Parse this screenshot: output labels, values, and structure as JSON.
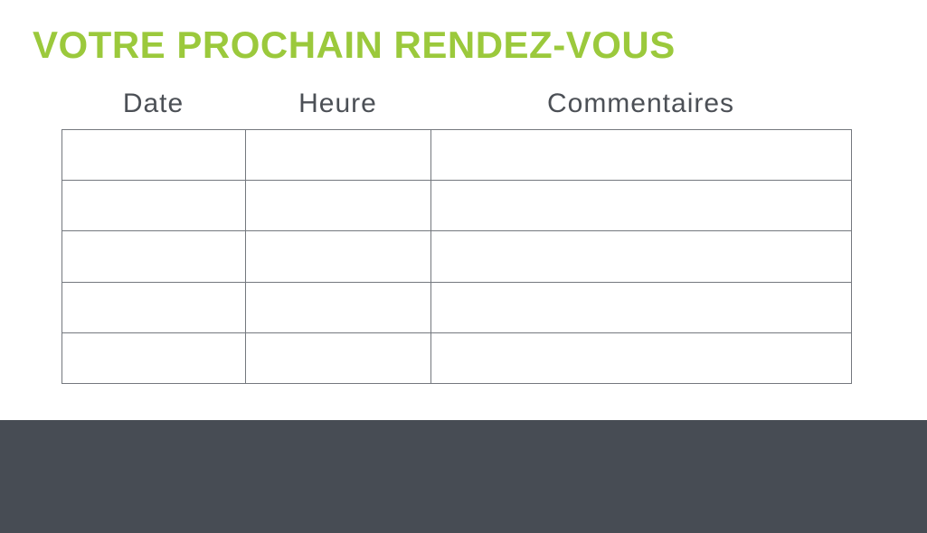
{
  "title": {
    "text": "VOTRE PROCHAIN RENDEZ-VOUS"
  },
  "table": {
    "column_headers": [
      "Date",
      "Heure",
      "Commentaires"
    ],
    "row_count": 5,
    "cells": [
      [
        "",
        "",
        ""
      ],
      [
        "",
        "",
        ""
      ],
      [
        "",
        "",
        ""
      ],
      [
        "",
        "",
        ""
      ],
      [
        "",
        "",
        ""
      ]
    ]
  },
  "colors": {
    "title_green": "#9bc93c",
    "header_text": "#4c5056",
    "table_border": "#74787e",
    "footer_background": "#474c54",
    "page_background": "#ffffff"
  }
}
